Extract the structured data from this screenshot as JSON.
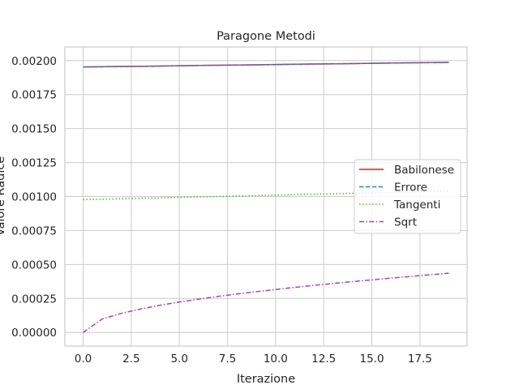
{
  "chart_data": {
    "type": "line",
    "title": "Paragone Metodi",
    "xlabel": "Iterazione",
    "ylabel": "Valore Radice",
    "xlim": [
      -0.95,
      19.95
    ],
    "ylim": [
      -0.0001,
      0.0021
    ],
    "x_ticks": [
      "0.0",
      "2.5",
      "5.0",
      "7.5",
      "10.0",
      "12.5",
      "15.0",
      "17.5"
    ],
    "x_tick_values": [
      0,
      2.5,
      5,
      7.5,
      10,
      12.5,
      15,
      17.5
    ],
    "y_ticks": [
      "0.00000",
      "0.00025",
      "0.00050",
      "0.00075",
      "0.00100",
      "0.00125",
      "0.00150",
      "0.00175",
      "0.00200"
    ],
    "y_tick_values": [
      0,
      0.00025,
      0.0005,
      0.00075,
      0.001,
      0.00125,
      0.0015,
      0.00175,
      0.002
    ],
    "grid": true,
    "legend_position": "center-right",
    "x": [
      0,
      1,
      2,
      3,
      4,
      5,
      6,
      7,
      8,
      9,
      10,
      11,
      12,
      13,
      14,
      15,
      16,
      17,
      18,
      19
    ],
    "series": [
      {
        "name": "Babilonese",
        "color": "#e41a1c",
        "dash": "solid",
        "values": [
          0.001953,
          0.001955,
          0.001957,
          0.001958,
          0.00196,
          0.001962,
          0.001964,
          0.001966,
          0.001967,
          0.001969,
          0.001971,
          0.001973,
          0.001975,
          0.001976,
          0.001978,
          0.00198,
          0.001982,
          0.001984,
          0.001985,
          0.001987
        ]
      },
      {
        "name": "Errore",
        "color": "#377eb8",
        "dash": "dashed",
        "values": [
          0.001953,
          0.001955,
          0.001957,
          0.001958,
          0.00196,
          0.001962,
          0.001964,
          0.001966,
          0.001967,
          0.001969,
          0.001971,
          0.001973,
          0.001975,
          0.001976,
          0.001978,
          0.00198,
          0.001982,
          0.001984,
          0.001985,
          0.001987
        ]
      },
      {
        "name": "Tangenti",
        "color": "#4daf4a",
        "dash": "dotted",
        "values": [
          0.000977,
          0.00098,
          0.000984,
          0.000987,
          0.00099,
          0.000994,
          0.000997,
          0.001,
          0.001004,
          0.001007,
          0.00101,
          0.001014,
          0.001017,
          0.00102,
          0.001024,
          0.001027,
          0.00103,
          0.001034,
          0.001037,
          0.00104
        ]
      },
      {
        "name": "Sqrt",
        "color": "#984ea3",
        "dash": "dashdot",
        "values": [
          0,
          0.0001,
          0.000141,
          0.000173,
          0.0002,
          0.000224,
          0.000245,
          0.000265,
          0.000283,
          0.0003,
          0.000316,
          0.000332,
          0.000346,
          0.000361,
          0.000374,
          0.000387,
          0.0004,
          0.000412,
          0.000424,
          0.000436
        ]
      }
    ]
  }
}
